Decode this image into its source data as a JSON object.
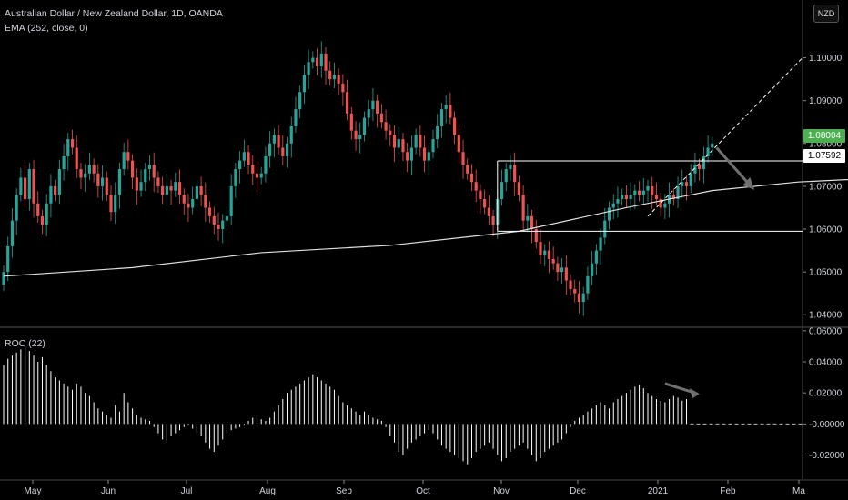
{
  "header": {
    "title": "Australian Dollar / New Zealand Dollar, 1D, OANDA",
    "indicator": "EMA (252, close, 0)",
    "currency_button": "NZD"
  },
  "roc_label": "ROC (22)",
  "colors": {
    "background": "#000000",
    "up_candle": "#26a69a",
    "down_candle": "#ef5350",
    "ema": "#e0e0e0",
    "roc_bars": "#ffffff",
    "last_price_bg": "#4caf50",
    "annotation": "#ffffff",
    "arrow": "#707070"
  },
  "price_tags": {
    "last": "1.08004",
    "level": "1.07592"
  },
  "chart_data": [
    {
      "type": "line",
      "title": "Australian Dollar / New Zealand Dollar, 1D, OANDA",
      "series_note": "candlestick close approximations",
      "y_ticks": [
        "1.10000",
        "1.09000",
        "1.08000",
        "1.07000",
        "1.06000",
        "1.05000",
        "1.04000"
      ],
      "ylim": [
        1.0375,
        1.1135
      ],
      "x_ticks": [
        "May",
        "Jun",
        "Jul",
        "Aug",
        "Sep",
        "Oct",
        "Nov",
        "Dec",
        "2021",
        "Feb",
        "Ma"
      ],
      "close": [
        1.05,
        1.056,
        1.062,
        1.068,
        1.072,
        1.067,
        1.074,
        1.066,
        1.063,
        1.061,
        1.066,
        1.07,
        1.068,
        1.074,
        1.077,
        1.081,
        1.079,
        1.074,
        1.072,
        1.073,
        1.075,
        1.073,
        1.07,
        1.072,
        1.068,
        1.064,
        1.068,
        1.074,
        1.078,
        1.076,
        1.072,
        1.069,
        1.071,
        1.074,
        1.075,
        1.072,
        1.07,
        1.068,
        1.07,
        1.069,
        1.071,
        1.068,
        1.066,
        1.065,
        1.067,
        1.07,
        1.068,
        1.065,
        1.063,
        1.061,
        1.06,
        1.062,
        1.063,
        1.07,
        1.074,
        1.076,
        1.078,
        1.075,
        1.073,
        1.072,
        1.073,
        1.077,
        1.08,
        1.082,
        1.079,
        1.077,
        1.08,
        1.084,
        1.088,
        1.092,
        1.096,
        1.099,
        1.1,
        1.098,
        1.101,
        1.097,
        1.095,
        1.096,
        1.094,
        1.092,
        1.087,
        1.083,
        1.081,
        1.082,
        1.086,
        1.088,
        1.09,
        1.087,
        1.085,
        1.083,
        1.082,
        1.079,
        1.081,
        1.078,
        1.076,
        1.079,
        1.082,
        1.079,
        1.076,
        1.078,
        1.081,
        1.084,
        1.088,
        1.089,
        1.086,
        1.082,
        1.078,
        1.075,
        1.073,
        1.071,
        1.069,
        1.067,
        1.065,
        1.063,
        1.061,
        1.067,
        1.071,
        1.074,
        1.075,
        1.071,
        1.068,
        1.062,
        1.063,
        1.06,
        1.057,
        1.054,
        1.055,
        1.053,
        1.052,
        1.05,
        1.051,
        1.048,
        1.046,
        1.045,
        1.043,
        1.045,
        1.049,
        1.052,
        1.055,
        1.058,
        1.062,
        1.065,
        1.066,
        1.067,
        1.068,
        1.067,
        1.068,
        1.069,
        1.068,
        1.069,
        1.07,
        1.068,
        1.067,
        1.065,
        1.066,
        1.068,
        1.067,
        1.07,
        1.071,
        1.07,
        1.073,
        1.075,
        1.074,
        1.077,
        1.079,
        1.08
      ],
      "ema": {
        "name": "EMA (252, close, 0)",
        "points": [
          [
            0,
            1.049
          ],
          [
            30,
            1.051
          ],
          [
            60,
            1.0545
          ],
          [
            90,
            1.0562
          ],
          [
            120,
            1.0595
          ],
          [
            145,
            1.065
          ],
          [
            165,
            1.069
          ],
          [
            185,
            1.071
          ],
          [
            205,
            1.072
          ],
          [
            225,
            1.0715
          ],
          [
            245,
            1.069
          ],
          [
            265,
            1.067
          ],
          [
            285,
            1.066
          ],
          [
            300,
            1.0665
          ]
        ]
      },
      "annotations": {
        "box_top": 1.07592,
        "box_bottom": 1.0595,
        "last_price": 1.08004
      }
    },
    {
      "type": "bar",
      "title": "ROC (22)",
      "y_ticks": [
        "0.06000",
        "0.04000",
        "0.02000",
        "-0.00000",
        "-0.02000"
      ],
      "ylim": [
        -0.0355,
        0.0605
      ],
      "values": [
        0.038,
        0.042,
        0.044,
        0.046,
        0.048,
        0.05,
        0.047,
        0.044,
        0.04,
        0.043,
        0.038,
        0.034,
        0.03,
        0.028,
        0.026,
        0.024,
        0.022,
        0.026,
        0.024,
        0.02,
        0.018,
        0.014,
        0.01,
        0.008,
        0.006,
        0.004,
        0.012,
        0.008,
        0.02,
        0.014,
        0.01,
        0.006,
        0.004,
        0.003,
        0.002,
        -0.002,
        -0.006,
        -0.01,
        -0.012,
        -0.008,
        -0.006,
        -0.004,
        -0.002,
        -0.001,
        -0.003,
        -0.006,
        -0.008,
        -0.012,
        -0.016,
        -0.018,
        -0.014,
        -0.01,
        -0.006,
        -0.004,
        -0.003,
        -0.002,
        -0.001,
        0.002,
        0.004,
        0.006,
        0.003,
        0.002,
        0.004,
        0.008,
        0.012,
        0.016,
        0.02,
        0.022,
        0.024,
        0.026,
        0.028,
        0.03,
        0.032,
        0.03,
        0.028,
        0.026,
        0.024,
        0.022,
        0.018,
        0.014,
        0.012,
        0.01,
        0.008,
        0.006,
        0.008,
        0.006,
        0.004,
        0.003,
        0.002,
        -0.002,
        -0.008,
        -0.012,
        -0.018,
        -0.02,
        -0.016,
        -0.012,
        -0.01,
        -0.008,
        -0.006,
        -0.004,
        -0.006,
        -0.01,
        -0.014,
        -0.016,
        -0.018,
        -0.02,
        -0.022,
        -0.024,
        -0.026,
        -0.022,
        -0.018,
        -0.016,
        -0.014,
        -0.012,
        -0.016,
        -0.02,
        -0.024,
        -0.022,
        -0.018,
        -0.016,
        -0.014,
        -0.012,
        -0.016,
        -0.02,
        -0.024,
        -0.022,
        -0.018,
        -0.016,
        -0.014,
        -0.012,
        -0.01,
        -0.006,
        -0.002,
        0.002,
        0.004,
        0.006,
        0.008,
        0.01,
        0.012,
        0.014,
        0.012,
        0.01,
        0.014,
        0.016,
        0.018,
        0.02,
        0.022,
        0.024,
        0.025,
        0.023,
        0.02,
        0.018,
        0.016,
        0.015,
        0.014,
        0.016,
        0.018,
        0.017,
        0.015,
        0.016
      ]
    }
  ]
}
